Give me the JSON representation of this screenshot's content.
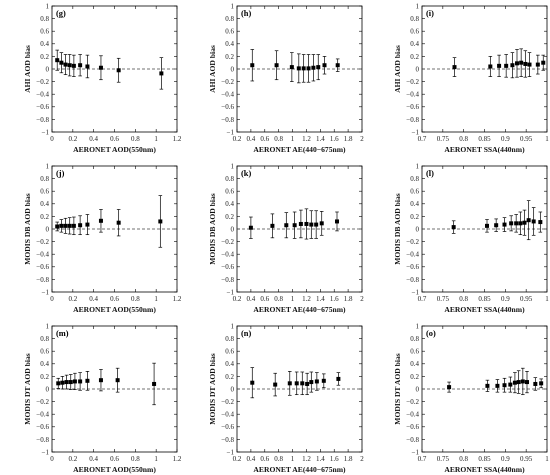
{
  "chart_data": [
    {
      "id": "g",
      "type": "scatter",
      "panel_label": "(g)",
      "xlabel": "AERONET AOD(550nm)",
      "ylabel": "AHI AOD bias",
      "xlim": [
        0,
        1.2
      ],
      "xticks": [
        0,
        0.2,
        0.4,
        0.6,
        0.8,
        1,
        1.2
      ],
      "xtick_labels": [
        "0",
        "0.2",
        "0.4",
        "0.6",
        "0.8",
        "1",
        "1.2"
      ],
      "ylim": [
        -1,
        1
      ],
      "reference_line": 0,
      "x": [
        0.05,
        0.09,
        0.13,
        0.17,
        0.21,
        0.27,
        0.34,
        0.47,
        0.64,
        1.05
      ],
      "y": [
        0.14,
        0.1,
        0.07,
        0.06,
        0.05,
        0.06,
        0.04,
        0.02,
        -0.02,
        -0.07
      ],
      "err": [
        0.16,
        0.16,
        0.16,
        0.17,
        0.17,
        0.17,
        0.18,
        0.19,
        0.19,
        0.25
      ]
    },
    {
      "id": "h",
      "type": "scatter",
      "panel_label": "(h)",
      "xlabel": "AERONET AE(440−675nm)",
      "ylabel": "AHI AOD bias",
      "xlim": [
        0.2,
        2
      ],
      "xticks": [
        0.2,
        0.4,
        0.6,
        0.8,
        1,
        1.2,
        1.4,
        1.6,
        1.8,
        2
      ],
      "xtick_labels": [
        "0.2",
        "0.4",
        "0.6",
        "0.8",
        "1",
        "1.2",
        "1.4",
        "1.6",
        "1.8",
        "2"
      ],
      "ylim": [
        -1,
        1
      ],
      "reference_line": 0,
      "x": [
        0.42,
        0.77,
        0.99,
        1.09,
        1.16,
        1.23,
        1.3,
        1.37,
        1.46,
        1.65
      ],
      "y": [
        0.06,
        0.06,
        0.03,
        0.01,
        0.01,
        0.01,
        0.02,
        0.03,
        0.06,
        0.06
      ],
      "err": [
        0.25,
        0.23,
        0.23,
        0.23,
        0.22,
        0.22,
        0.21,
        0.2,
        0.14,
        0.1
      ]
    },
    {
      "id": "i",
      "type": "scatter",
      "panel_label": "(i)",
      "xlabel": "AERONET SSA(440nm)",
      "ylabel": "AHI AOD bias",
      "xlim": [
        0.7,
        1
      ],
      "xticks": [
        0.7,
        0.75,
        0.8,
        0.85,
        0.9,
        0.95,
        1
      ],
      "xtick_labels": [
        "0.7",
        "0.75",
        "0.8",
        "0.85",
        "0.9",
        "0.95",
        "1"
      ],
      "ylim": [
        -1,
        1
      ],
      "reference_line": 0,
      "x": [
        0.778,
        0.864,
        0.885,
        0.902,
        0.917,
        0.928,
        0.938,
        0.948,
        0.958,
        0.978,
        0.991
      ],
      "y": [
        0.03,
        0.04,
        0.05,
        0.05,
        0.06,
        0.09,
        0.1,
        0.08,
        0.07,
        0.07,
        0.1
      ],
      "err": [
        0.15,
        0.16,
        0.17,
        0.18,
        0.2,
        0.22,
        0.22,
        0.21,
        0.19,
        0.15,
        0.12
      ]
    },
    {
      "id": "j",
      "type": "scatter",
      "panel_label": "(j)",
      "xlabel": "AERONET AOD(550nm)",
      "ylabel": "MODIS DB AOD bias",
      "xlim": [
        0,
        1.2
      ],
      "xticks": [
        0,
        0.2,
        0.4,
        0.6,
        0.8,
        1,
        1.2
      ],
      "xtick_labels": [
        "0",
        "0.2",
        "0.4",
        "0.6",
        "0.8",
        "1",
        "1.2"
      ],
      "ylim": [
        -1,
        1
      ],
      "reference_line": 0,
      "x": [
        0.05,
        0.09,
        0.13,
        0.17,
        0.21,
        0.27,
        0.34,
        0.47,
        0.64,
        1.04
      ],
      "y": [
        0.04,
        0.05,
        0.05,
        0.05,
        0.05,
        0.06,
        0.07,
        0.13,
        0.1,
        0.12
      ],
      "err": [
        0.07,
        0.1,
        0.12,
        0.13,
        0.14,
        0.15,
        0.16,
        0.18,
        0.21,
        0.41
      ]
    },
    {
      "id": "k",
      "type": "scatter",
      "panel_label": "(k)",
      "xlabel": "AERONET AE(440−675nm)",
      "ylabel": "MODIS DB AOD bias",
      "xlim": [
        0.2,
        2
      ],
      "xticks": [
        0.2,
        0.4,
        0.6,
        0.8,
        1,
        1.2,
        1.4,
        1.6,
        1.8,
        2
      ],
      "xtick_labels": [
        "0.2",
        "0.4",
        "0.6",
        "0.8",
        "1",
        "1.2",
        "1.4",
        "1.6",
        "1.8",
        "2"
      ],
      "ylim": [
        -1,
        1
      ],
      "reference_line": 0,
      "x": [
        0.4,
        0.71,
        0.91,
        1.03,
        1.12,
        1.2,
        1.27,
        1.34,
        1.42,
        1.64
      ],
      "y": [
        0.02,
        0.05,
        0.06,
        0.06,
        0.08,
        0.08,
        0.07,
        0.07,
        0.09,
        0.12
      ],
      "err": [
        0.17,
        0.19,
        0.2,
        0.21,
        0.22,
        0.24,
        0.22,
        0.22,
        0.19,
        0.15
      ]
    },
    {
      "id": "l",
      "type": "scatter",
      "panel_label": "(l)",
      "xlabel": "AERONET SSA(440nm)",
      "ylabel": "MODIS DB AOD bias",
      "xlim": [
        0.7,
        1
      ],
      "xticks": [
        0.7,
        0.75,
        0.8,
        0.85,
        0.9,
        0.95,
        1
      ],
      "xtick_labels": [
        "0.7",
        "0.75",
        "0.8",
        "0.85",
        "0.9",
        "0.95",
        "1"
      ],
      "ylim": [
        -1,
        1
      ],
      "reference_line": 0,
      "x": [
        0.776,
        0.856,
        0.878,
        0.898,
        0.914,
        0.926,
        0.936,
        0.946,
        0.956,
        0.968,
        0.984
      ],
      "y": [
        0.03,
        0.05,
        0.06,
        0.07,
        0.09,
        0.09,
        0.09,
        0.1,
        0.14,
        0.12,
        0.11
      ],
      "err": [
        0.1,
        0.1,
        0.1,
        0.11,
        0.12,
        0.14,
        0.18,
        0.2,
        0.31,
        0.22,
        0.16
      ]
    },
    {
      "id": "m",
      "type": "scatter",
      "panel_label": "(m)",
      "xlabel": "AERONET AOD(550nm)",
      "ylabel": "MODIS DT AOD bias",
      "xlim": [
        0,
        1.2
      ],
      "xticks": [
        0,
        0.2,
        0.4,
        0.6,
        0.8,
        1,
        1.2
      ],
      "xtick_labels": [
        "0",
        "0.2",
        "0.4",
        "0.6",
        "0.8",
        "1",
        "1.2"
      ],
      "ylim": [
        -1,
        1
      ],
      "reference_line": 0,
      "x": [
        0.06,
        0.1,
        0.14,
        0.18,
        0.22,
        0.27,
        0.34,
        0.47,
        0.63,
        0.98
      ],
      "y": [
        0.09,
        0.1,
        0.11,
        0.11,
        0.12,
        0.12,
        0.13,
        0.14,
        0.14,
        0.08
      ],
      "err": [
        0.08,
        0.1,
        0.11,
        0.12,
        0.13,
        0.14,
        0.15,
        0.17,
        0.19,
        0.33
      ]
    },
    {
      "id": "n",
      "type": "scatter",
      "panel_label": "(n)",
      "xlabel": "AERONET AE(440−675nm)",
      "ylabel": "MODIS DT AOD bias",
      "xlim": [
        0.2,
        2
      ],
      "xticks": [
        0.2,
        0.4,
        0.6,
        0.8,
        1,
        1.2,
        1.4,
        1.6,
        1.8,
        2
      ],
      "xtick_labels": [
        "0.2",
        "0.4",
        "0.6",
        "0.8",
        "1",
        "1.2",
        "1.4",
        "1.6",
        "1.8",
        "2"
      ],
      "ylim": [
        -1,
        1
      ],
      "reference_line": 0,
      "x": [
        0.42,
        0.75,
        0.96,
        1.06,
        1.14,
        1.21,
        1.27,
        1.35,
        1.45,
        1.66
      ],
      "y": [
        0.1,
        0.07,
        0.09,
        0.09,
        0.09,
        0.08,
        0.11,
        0.12,
        0.13,
        0.16
      ],
      "err": [
        0.24,
        0.18,
        0.19,
        0.18,
        0.18,
        0.17,
        0.16,
        0.14,
        0.11,
        0.1
      ]
    },
    {
      "id": "o",
      "type": "scatter",
      "panel_label": "(o)",
      "xlabel": "AERONET SSA(440nm)",
      "ylabel": "MODIS DT AOD bias",
      "xlim": [
        0.7,
        1
      ],
      "xticks": [
        0.7,
        0.75,
        0.8,
        0.85,
        0.9,
        0.95,
        1
      ],
      "xtick_labels": [
        "0.7",
        "0.75",
        "0.8",
        "0.85",
        "0.9",
        "0.95",
        "1"
      ],
      "ylim": [
        -1,
        1
      ],
      "reference_line": 0,
      "x": [
        0.765,
        0.857,
        0.881,
        0.898,
        0.912,
        0.923,
        0.932,
        0.942,
        0.952,
        0.972,
        0.986
      ],
      "y": [
        0.03,
        0.05,
        0.05,
        0.06,
        0.07,
        0.1,
        0.11,
        0.12,
        0.11,
        0.08,
        0.09
      ],
      "err": [
        0.08,
        0.09,
        0.1,
        0.11,
        0.12,
        0.16,
        0.18,
        0.21,
        0.17,
        0.1,
        0.07
      ]
    }
  ],
  "shared_axes": {
    "y_ticks": [
      -1,
      -0.8,
      -0.6,
      -0.4,
      -0.2,
      0,
      0.2,
      0.4,
      0.6,
      0.8,
      1
    ],
    "y_tick_labels": [
      "−1",
      "−0.8",
      "−0.6",
      "−0.4",
      "−0.2",
      "0",
      "0.2",
      "0.4",
      "0.6",
      "0.8",
      "1"
    ],
    "style": {
      "axis_color": "#000000",
      "marker_color": "#000000",
      "reference_line_color": "#444444"
    }
  }
}
